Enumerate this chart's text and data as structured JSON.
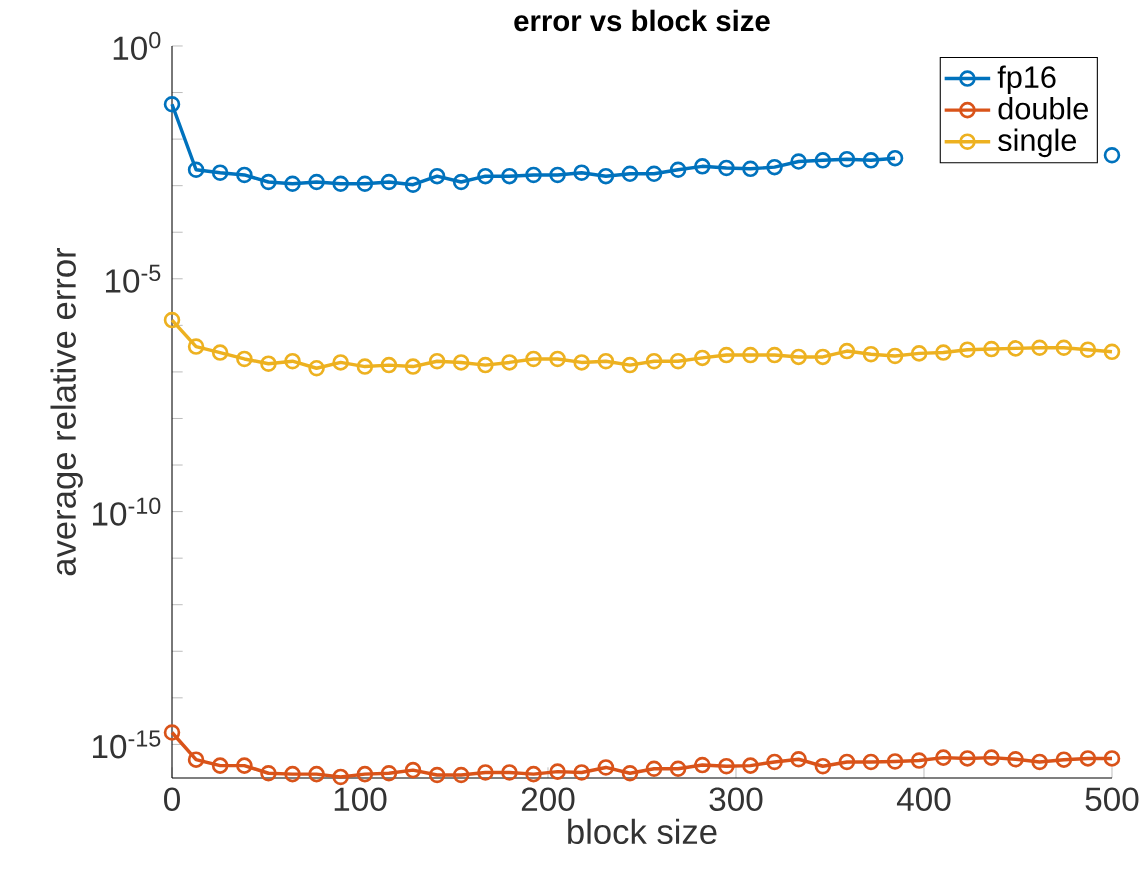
{
  "chart_data": {
    "type": "line",
    "title": "error vs block size",
    "xlabel": "block size",
    "ylabel": "average relative error",
    "log": "y",
    "marker": "circle",
    "line_style": "solid",
    "legend": "top right",
    "grid": false,
    "x": [
      0,
      12.8,
      25.6,
      38.5,
      51.3,
      64.1,
      76.9,
      89.7,
      102.6,
      115.4,
      128.2,
      141.0,
      153.8,
      166.7,
      179.5,
      192.3,
      205.1,
      217.9,
      230.8,
      243.6,
      256.4,
      269.2,
      282.1,
      294.9,
      307.7,
      320.5,
      333.3,
      346.2,
      359.0,
      371.8,
      384.6,
      397.4,
      410.3,
      423.1,
      435.9,
      448.7,
      461.5,
      474.4,
      487.2,
      500
    ],
    "xlim": [
      0,
      500
    ],
    "xticks": [
      0,
      100,
      200,
      300,
      400,
      500
    ],
    "ylim": [
      1.9e-16,
      1
    ],
    "yticks": [
      {
        "value": 1,
        "label": "10$^{0}$"
      },
      {
        "value": 0.1,
        "label": null
      },
      {
        "value": 0.01,
        "label": null
      },
      {
        "value": 0.001,
        "label": null
      },
      {
        "value": 0.0001,
        "label": null
      },
      {
        "value": 1e-05,
        "label": "10$^{-5}$"
      },
      {
        "value": 1e-06,
        "label": null
      },
      {
        "value": 1e-07,
        "label": null
      },
      {
        "value": 1e-08,
        "label": null
      },
      {
        "value": 1e-09,
        "label": null
      },
      {
        "value": 1e-10,
        "label": "10$^{-10}$"
      },
      {
        "value": 1e-11,
        "label": null
      },
      {
        "value": 1e-12,
        "label": null
      },
      {
        "value": 1e-13,
        "label": null
      },
      {
        "value": 1e-14,
        "label": null
      },
      {
        "value": 1e-15,
        "label": "10$^{-15}$"
      }
    ],
    "series": [
      {
        "name": "fp16",
        "color": "#0072bd",
        "values": [
          0.056,
          0.0022,
          0.0019,
          0.0017,
          0.0012,
          0.0011,
          0.0012,
          0.0011,
          0.0011,
          0.0012,
          0.00105,
          0.0016,
          0.0012,
          0.0016,
          0.0016,
          0.0017,
          0.0017,
          0.0019,
          0.0016,
          0.0018,
          0.0018,
          0.0022,
          0.0026,
          0.0024,
          0.0023,
          0.0025,
          0.0033,
          0.0035,
          0.0037,
          0.0035,
          0.0039,
          null,
          null,
          null,
          null,
          null,
          null,
          null,
          null,
          0.0045
        ]
      },
      {
        "name": "double",
        "color": "#d95319",
        "values": [
          1.8e-15,
          4.7e-16,
          3.5e-16,
          3.5e-16,
          2.4e-16,
          2.3e-16,
          2.3e-16,
          2e-16,
          2.3e-16,
          2.4e-16,
          2.8e-16,
          2.2e-16,
          2.2e-16,
          2.5e-16,
          2.5e-16,
          2.3e-16,
          2.6e-16,
          2.5e-16,
          3.2e-16,
          2.4e-16,
          3e-16,
          3e-16,
          3.6e-16,
          3.4e-16,
          3.5e-16,
          4.2e-16,
          4.8e-16,
          3.4e-16,
          4.2e-16,
          4.2e-16,
          4.3e-16,
          4.5e-16,
          5.2e-16,
          5e-16,
          5.2e-16,
          4.8e-16,
          4.2e-16,
          4.7e-16,
          5e-16,
          5e-16
        ]
      },
      {
        "name": "single",
        "color": "#edb120",
        "values": [
          1.3e-06,
          3.5e-07,
          2.6e-07,
          1.9e-07,
          1.5e-07,
          1.7e-07,
          1.2e-07,
          1.6e-07,
          1.3e-07,
          1.4e-07,
          1.3e-07,
          1.7e-07,
          1.6e-07,
          1.4e-07,
          1.6e-07,
          1.9e-07,
          1.9e-07,
          1.6e-07,
          1.7e-07,
          1.4e-07,
          1.7e-07,
          1.7e-07,
          2e-07,
          2.3e-07,
          2.3e-07,
          2.3e-07,
          2.1e-07,
          2.1e-07,
          2.8e-07,
          2.4e-07,
          2.2e-07,
          2.5e-07,
          2.6e-07,
          3e-07,
          3.1e-07,
          3.2e-07,
          3.3e-07,
          3.3e-07,
          3e-07,
          2.7e-07
        ]
      }
    ]
  }
}
